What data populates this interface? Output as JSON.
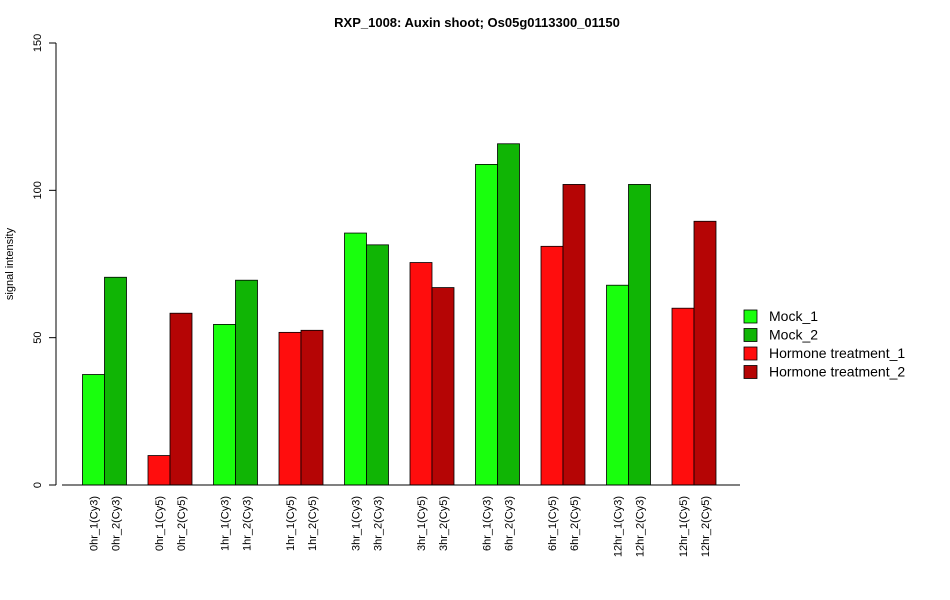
{
  "chart_data": {
    "type": "bar",
    "title": "RXP_1008: Auxin shoot; Os05g0113300_01150",
    "xlabel": "",
    "ylabel": "signal intensity",
    "ylim": [
      0,
      150
    ],
    "yticks": [
      "0",
      "50",
      "100",
      "150"
    ],
    "grid": false,
    "legend_position": "right",
    "bars": [
      {
        "label": "0hr_1(Cy3)",
        "value": 37.5,
        "series": "Mock_1"
      },
      {
        "label": "0hr_2(Cy3)",
        "value": 70.5,
        "series": "Mock_2"
      },
      {
        "label": "0hr_1(Cy5)",
        "value": 10,
        "series": "Hormone treatment_1"
      },
      {
        "label": "0hr_2(Cy5)",
        "value": 58.3,
        "series": "Hormone treatment_2"
      },
      {
        "label": "1hr_1(Cy3)",
        "value": 54.5,
        "series": "Mock_1"
      },
      {
        "label": "1hr_2(Cy3)",
        "value": 69.5,
        "series": "Mock_2"
      },
      {
        "label": "1hr_1(Cy5)",
        "value": 51.8,
        "series": "Hormone treatment_1"
      },
      {
        "label": "1hr_2(Cy5)",
        "value": 52.5,
        "series": "Hormone treatment_2"
      },
      {
        "label": "3hr_1(Cy3)",
        "value": 85.5,
        "series": "Mock_1"
      },
      {
        "label": "3hr_2(Cy3)",
        "value": 81.5,
        "series": "Mock_2"
      },
      {
        "label": "3hr_1(Cy5)",
        "value": 75.5,
        "series": "Hormone treatment_1"
      },
      {
        "label": "3hr_2(Cy5)",
        "value": 67,
        "series": "Hormone treatment_2"
      },
      {
        "label": "6hr_1(Cy3)",
        "value": 108.8,
        "series": "Mock_1"
      },
      {
        "label": "6hr_2(Cy3)",
        "value": 115.8,
        "series": "Mock_2"
      },
      {
        "label": "6hr_1(Cy5)",
        "value": 81,
        "series": "Hormone treatment_1"
      },
      {
        "label": "6hr_2(Cy5)",
        "value": 102,
        "series": "Hormone treatment_2"
      },
      {
        "label": "12hr_1(Cy3)",
        "value": 67.8,
        "series": "Mock_1"
      },
      {
        "label": "12hr_2(Cy3)",
        "value": 102,
        "series": "Mock_2"
      },
      {
        "label": "12hr_1(Cy5)",
        "value": 60,
        "series": "Hormone treatment_1"
      },
      {
        "label": "12hr_2(Cy5)",
        "value": 89.5,
        "series": "Hormone treatment_2"
      }
    ],
    "legend": [
      {
        "name": "Mock_1",
        "color": "#19ff0d"
      },
      {
        "name": "Mock_2",
        "color": "#10b505"
      },
      {
        "name": "Hormone treatment_1",
        "color": "#ff0d0d"
      },
      {
        "name": "Hormone treatment_2",
        "color": "#b50505"
      }
    ]
  }
}
